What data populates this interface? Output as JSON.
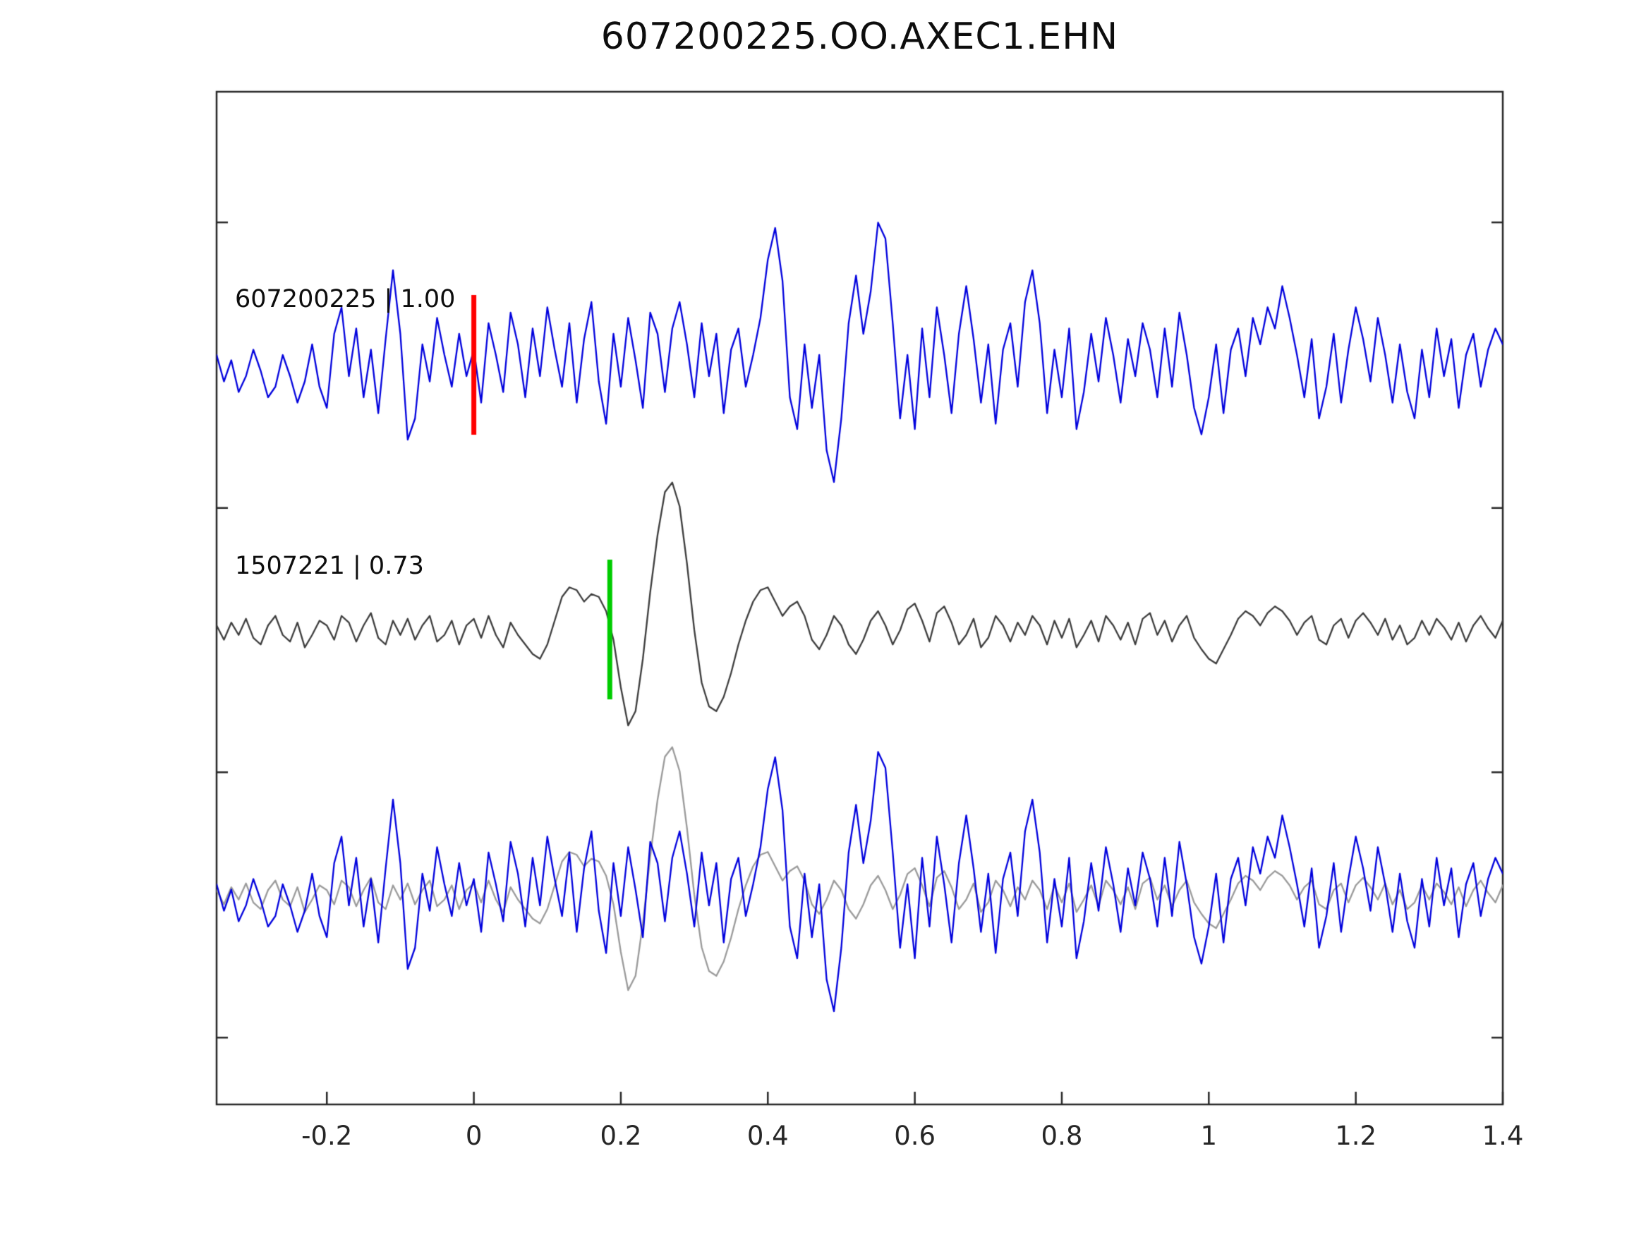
{
  "figure": {
    "title": "607200225.OO.AXEC1.EHN"
  },
  "chart_data": {
    "type": "line",
    "title": "607200225.OO.AXEC1.EHN",
    "xlabel": "",
    "ylabel": "",
    "xlim": [
      -0.35,
      1.4
    ],
    "x_start": -0.35,
    "x_step": 0.01,
    "grid": false,
    "legend": "none",
    "xtick_values": [
      -0.2,
      0,
      0.2,
      0.4,
      0.6,
      0.8,
      1,
      1.2,
      1.4
    ],
    "xtick_labels": [
      "-0.2",
      "0",
      "0.2",
      "0.4",
      "0.6",
      "0.8",
      "1",
      "1.2",
      "1.4"
    ],
    "rows": [
      {
        "label": "607200225 | 1.00",
        "traces": [
          {
            "series": "template",
            "color": "#0000dd"
          }
        ]
      },
      {
        "label": "1507221 | 0.73",
        "traces": [
          {
            "series": "detection",
            "color": "#3c3c3c"
          }
        ]
      },
      {
        "label": "",
        "traces": [
          {
            "series": "detection",
            "color": "#9a9a9a"
          },
          {
            "series": "template",
            "color": "#0000dd"
          }
        ]
      }
    ],
    "markers": [
      {
        "row": 0,
        "x": 0.0,
        "color": "#ff0000",
        "name": "pick-marker-red"
      },
      {
        "row": 1,
        "x": 0.185,
        "color": "#00cc00",
        "name": "pick-marker-green"
      }
    ],
    "series": {
      "template": {
        "name": "607200225",
        "correlation": "1.00",
        "values": [
          0.1,
          -0.15,
          0.05,
          -0.25,
          -0.1,
          0.15,
          -0.05,
          -0.3,
          -0.2,
          0.1,
          -0.1,
          -0.35,
          -0.15,
          0.2,
          -0.2,
          -0.4,
          0.3,
          0.55,
          -0.1,
          0.35,
          -0.3,
          0.15,
          -0.45,
          0.25,
          0.9,
          0.3,
          -0.7,
          -0.5,
          0.2,
          -0.15,
          0.45,
          0.1,
          -0.2,
          0.3,
          -0.1,
          0.15,
          -0.35,
          0.4,
          0.1,
          -0.25,
          0.5,
          0.2,
          -0.3,
          0.35,
          -0.1,
          0.55,
          0.15,
          -0.2,
          0.4,
          -0.35,
          0.25,
          0.6,
          -0.15,
          -0.55,
          0.3,
          -0.2,
          0.45,
          0.05,
          -0.4,
          0.5,
          0.3,
          -0.25,
          0.35,
          0.6,
          0.2,
          -0.3,
          0.4,
          -0.1,
          0.3,
          -0.45,
          0.15,
          0.35,
          -0.2,
          0.1,
          0.45,
          1.0,
          1.3,
          0.8,
          -0.3,
          -0.6,
          0.2,
          -0.4,
          0.1,
          -0.8,
          -1.1,
          -0.5,
          0.4,
          0.85,
          0.3,
          0.7,
          1.35,
          1.2,
          0.4,
          -0.5,
          0.1,
          -0.6,
          0.35,
          -0.3,
          0.55,
          0.1,
          -0.45,
          0.3,
          0.75,
          0.25,
          -0.35,
          0.2,
          -0.55,
          0.15,
          0.4,
          -0.2,
          0.6,
          0.9,
          0.4,
          -0.45,
          0.15,
          -0.3,
          0.35,
          -0.6,
          -0.25,
          0.3,
          -0.15,
          0.45,
          0.1,
          -0.35,
          0.25,
          -0.1,
          0.4,
          0.15,
          -0.3,
          0.35,
          -0.2,
          0.5,
          0.1,
          -0.4,
          -0.65,
          -0.3,
          0.2,
          -0.45,
          0.15,
          0.35,
          -0.1,
          0.45,
          0.2,
          0.55,
          0.35,
          0.75,
          0.45,
          0.1,
          -0.3,
          0.25,
          -0.5,
          -0.2,
          0.3,
          -0.35,
          0.15,
          0.55,
          0.25,
          -0.15,
          0.45,
          0.1,
          -0.35,
          0.2,
          -0.25,
          -0.5,
          0.15,
          -0.3,
          0.35,
          -0.1,
          0.25,
          -0.4,
          0.1,
          0.3,
          -0.2,
          0.15,
          0.35,
          0.2
        ]
      },
      "detection": {
        "name": "1507221",
        "correlation": "0.73",
        "values": [
          0.05,
          -0.1,
          0.08,
          -0.05,
          0.12,
          -0.08,
          -0.15,
          0.05,
          0.15,
          -0.05,
          -0.12,
          0.08,
          -0.18,
          -0.05,
          0.1,
          0.05,
          -0.1,
          0.15,
          0.08,
          -0.12,
          0.05,
          0.18,
          -0.08,
          -0.15,
          0.1,
          -0.05,
          0.12,
          -0.1,
          0.05,
          0.15,
          -0.12,
          -0.05,
          0.1,
          -0.15,
          0.05,
          0.12,
          -0.08,
          0.15,
          -0.05,
          -0.18,
          0.08,
          -0.05,
          -0.15,
          -0.25,
          -0.3,
          -0.15,
          0.1,
          0.35,
          0.45,
          0.42,
          0.3,
          0.38,
          0.35,
          0.2,
          -0.1,
          -0.6,
          -1.0,
          -0.85,
          -0.3,
          0.4,
          1.0,
          1.45,
          1.55,
          1.3,
          0.7,
          0.0,
          -0.55,
          -0.8,
          -0.85,
          -0.7,
          -0.45,
          -0.15,
          0.1,
          0.3,
          0.42,
          0.45,
          0.3,
          0.15,
          0.25,
          0.3,
          0.15,
          -0.1,
          -0.2,
          -0.05,
          0.15,
          0.05,
          -0.15,
          -0.25,
          -0.1,
          0.1,
          0.2,
          0.05,
          -0.15,
          0.0,
          0.22,
          0.28,
          0.1,
          -0.12,
          0.18,
          0.25,
          0.08,
          -0.15,
          -0.05,
          0.12,
          -0.18,
          -0.08,
          0.15,
          0.05,
          -0.12,
          0.08,
          -0.05,
          0.15,
          0.05,
          -0.15,
          0.1,
          -0.08,
          0.12,
          -0.18,
          -0.05,
          0.1,
          -0.12,
          0.15,
          0.05,
          -0.1,
          0.08,
          -0.15,
          0.12,
          0.18,
          -0.05,
          0.1,
          -0.12,
          0.05,
          0.15,
          -0.08,
          -0.2,
          -0.3,
          -0.35,
          -0.2,
          -0.05,
          0.12,
          0.2,
          0.15,
          0.05,
          0.18,
          0.25,
          0.2,
          0.1,
          -0.05,
          0.08,
          0.15,
          -0.1,
          -0.15,
          0.05,
          0.12,
          -0.08,
          0.1,
          0.18,
          0.08,
          -0.05,
          0.12,
          -0.1,
          0.05,
          -0.15,
          -0.08,
          0.1,
          -0.05,
          0.12,
          0.03,
          -0.1,
          0.08,
          -0.12,
          0.05,
          0.15,
          0.02,
          -0.08,
          0.1
        ]
      }
    }
  }
}
